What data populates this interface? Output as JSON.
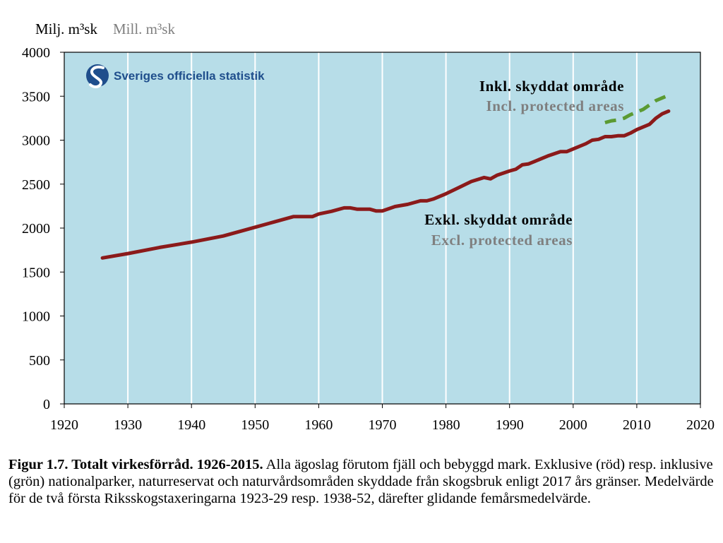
{
  "unit_label_sv": "Milj. m³sk",
  "unit_label_en": "Mill. m³sk",
  "logo_text": "Sveriges officiella statistik",
  "caption": {
    "bold": "Figur 1.7. Totalt virkesförråd. 1926-2015.",
    "text": " Alla ägoslag förutom fjäll och bebyggd mark. Exklusive (röd) resp. inklusive (grön) nationalparker, naturreservat och naturvårdsområden skyddade från skogsbruk enligt 2017 års gränser. Medelvärde för de två första Riksskogstaxeringarna 1923-29 resp. 1938-52, därefter glidande femårsmedelvärde."
  },
  "colors": {
    "plot_background": "#b7dde8",
    "grid": "#ffffff",
    "excl_series": "#8b1a1a",
    "incl_series": "#5b9a32",
    "annotation_sub": "#7f7f7f"
  },
  "chart_data": {
    "type": "line",
    "xlim": [
      1920,
      2020
    ],
    "ylim": [
      0,
      4000
    ],
    "xticks": [
      1920,
      1930,
      1940,
      1950,
      1960,
      1970,
      1980,
      1990,
      2000,
      2010,
      2020
    ],
    "yticks": [
      0,
      500,
      1000,
      1500,
      2000,
      2500,
      3000,
      3500,
      4000
    ],
    "grid": "vertical",
    "series": [
      {
        "key": "excl",
        "style": "solid",
        "x": [
          1926,
          1930,
          1935,
          1940,
          1945,
          1950,
          1953,
          1956,
          1957,
          1959,
          1960,
          1962,
          1964,
          1965,
          1966,
          1968,
          1969,
          1970,
          1972,
          1974,
          1976,
          1977,
          1978,
          1980,
          1982,
          1984,
          1986,
          1987,
          1988,
          1990,
          1991,
          1992,
          1993,
          1994,
          1996,
          1998,
          1999,
          2000,
          2002,
          2003,
          2004,
          2005,
          2006,
          2007,
          2008,
          2009,
          2010,
          2011,
          2012,
          2013,
          2014,
          2015
        ],
        "y": [
          1660,
          1710,
          1780,
          1840,
          1910,
          2010,
          2070,
          2130,
          2130,
          2130,
          2160,
          2190,
          2230,
          2230,
          2215,
          2215,
          2195,
          2195,
          2245,
          2270,
          2310,
          2310,
          2330,
          2390,
          2460,
          2530,
          2575,
          2560,
          2600,
          2650,
          2670,
          2720,
          2730,
          2760,
          2820,
          2870,
          2870,
          2900,
          2960,
          3000,
          3010,
          3040,
          3040,
          3050,
          3050,
          3080,
          3120,
          3150,
          3180,
          3250,
          3300,
          3330
        ]
      },
      {
        "key": "incl",
        "style": "dashed",
        "x": [
          2005,
          2006,
          2007,
          2008,
          2009,
          2010,
          2011,
          2012,
          2013,
          2014,
          2015
        ],
        "y": [
          3200,
          3220,
          3230,
          3250,
          3290,
          3320,
          3350,
          3400,
          3450,
          3480,
          3510
        ]
      }
    ],
    "annotations": [
      {
        "series": "incl",
        "line1": "Inkl. skyddat område",
        "line2": "Incl. protected areas"
      },
      {
        "series": "excl",
        "line1": "Exkl. skyddat område",
        "line2": "Excl. protected areas"
      }
    ]
  }
}
